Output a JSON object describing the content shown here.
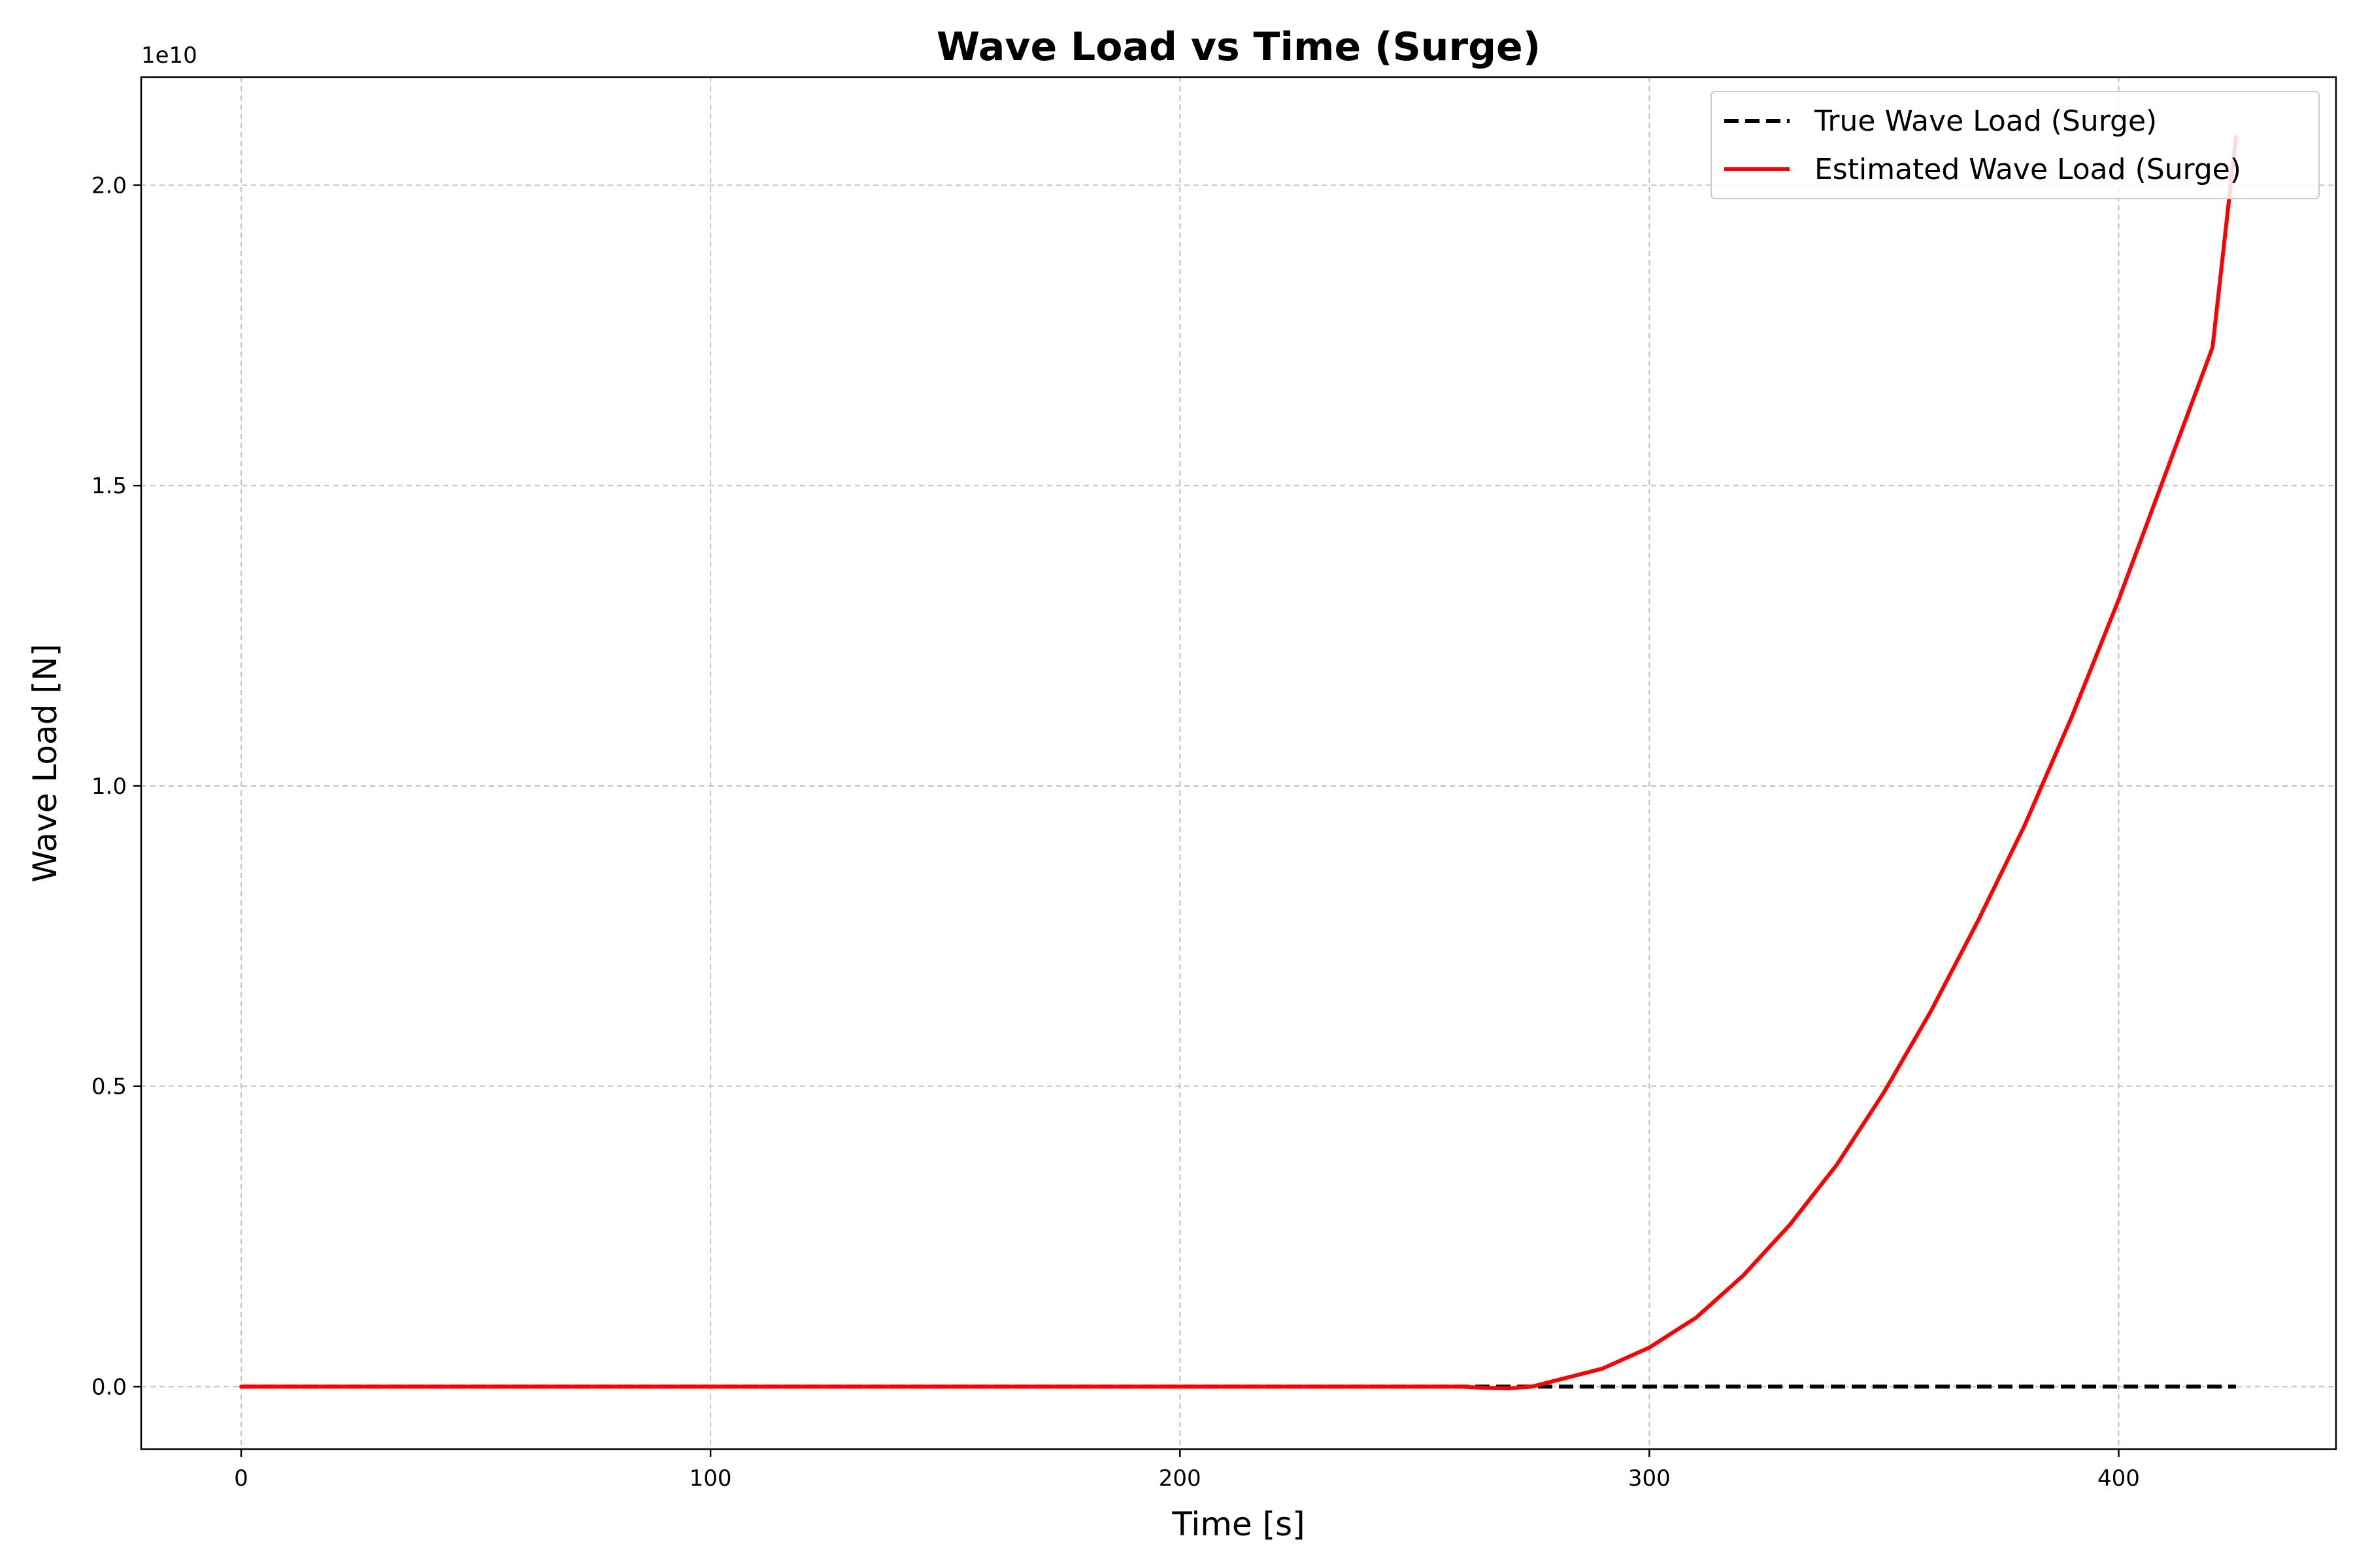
{
  "chart_data": {
    "type": "line",
    "title": "Wave Load vs Time (Surge)",
    "xlabel": "Time [s]",
    "ylabel": "Wave Load [N]",
    "y_offset_label": "1e10",
    "xlim": [
      -21.3,
      446.3
    ],
    "ylim": [
      -0.104,
      2.18
    ],
    "xticks": [
      0,
      100,
      200,
      300,
      400
    ],
    "xtick_labels": [
      "0",
      "100",
      "200",
      "300",
      "400"
    ],
    "yticks": [
      0.0,
      0.5,
      1.0,
      1.5,
      2.0
    ],
    "ytick_labels": [
      "0.0",
      "0.5",
      "1.0",
      "1.5",
      "2.0"
    ],
    "grid": true,
    "legend_position": "top-right",
    "series": [
      {
        "name": "True Wave Load (Surge)",
        "color": "#000000",
        "style": "dashed",
        "x": [
          0,
          425
        ],
        "y": [
          0,
          0
        ]
      },
      {
        "name": "Estimated Wave Load (Surge)",
        "color": "#ff0000",
        "style": "solid",
        "x": [
          0,
          100,
          200,
          260,
          265,
          270,
          275,
          280,
          290,
          300,
          310,
          320,
          330,
          340,
          350,
          360,
          370,
          380,
          390,
          400,
          410,
          420,
          425
        ],
        "y": [
          0,
          0,
          0,
          0,
          -0.002,
          -0.003,
          0.0,
          0.01,
          0.03,
          0.065,
          0.115,
          0.185,
          0.27,
          0.37,
          0.49,
          0.625,
          0.775,
          0.935,
          1.115,
          1.31,
          1.52,
          1.73,
          2.08
        ]
      }
    ]
  }
}
